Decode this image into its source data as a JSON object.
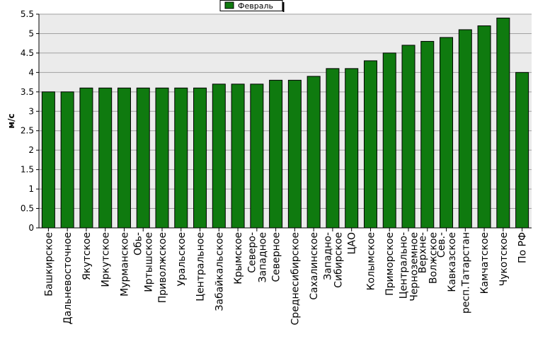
{
  "chart_data": {
    "type": "bar",
    "title": "",
    "xlabel": "",
    "ylabel": "м/с",
    "ylim": [
      0,
      5.5
    ],
    "yticks": [
      "0",
      "0.5",
      "1",
      "1.5",
      "2",
      "2.5",
      "3",
      "3.5",
      "4",
      "4.5",
      "5",
      "5.5"
    ],
    "grid": true,
    "legend_position": "top-center",
    "colors": {
      "bar": "#0f7a0f",
      "bar_edge": "#000000",
      "plot_bg": "#ebebeb",
      "grid": "#a0a0a0"
    },
    "categories": [
      "Башкирское",
      "Дальневосточное",
      "Якутское",
      "Иркутское",
      "Мурманское",
      "Обь-Иртышское",
      "Приволжское",
      "Уральское",
      "Центральное",
      "Забайкальское",
      "Крымское",
      "Северо-Западное",
      "Северное",
      "Среднесибирское",
      "Сахалинское",
      "Западно-Сибирское",
      "ЦАО",
      "Колымское",
      "Приморское",
      "Центрально-Черноземное",
      "Верхне-Волжское",
      "Сев.-Кавказское",
      "респ.Татарстан",
      "Камчатское",
      "Чукотское",
      "По РФ"
    ],
    "category_lines": [
      [
        "Башкирское"
      ],
      [
        "Дальневосточное"
      ],
      [
        "Якутское"
      ],
      [
        "Иркутское"
      ],
      [
        "Мурманское"
      ],
      [
        "Обь-",
        "Иртышское"
      ],
      [
        "Приволжское"
      ],
      [
        "Уральское"
      ],
      [
        "Центральное"
      ],
      [
        "Забайкальское"
      ],
      [
        "Крымское"
      ],
      [
        "Северо-",
        "Западное"
      ],
      [
        "Северное"
      ],
      [
        "Среднесибирское"
      ],
      [
        "Сахалинское"
      ],
      [
        "Западно-",
        "Сибирское"
      ],
      [
        "ЦАО"
      ],
      [
        "Колымское"
      ],
      [
        "Приморское"
      ],
      [
        "Центрально-",
        "Черноземное"
      ],
      [
        "Верхне-",
        "Волжское"
      ],
      [
        "Сев.-",
        "Кавказское"
      ],
      [
        "респ.Татарстан"
      ],
      [
        "Камчатское"
      ],
      [
        "Чукотское"
      ],
      [
        "По РФ"
      ]
    ],
    "series": [
      {
        "name": "Февраль",
        "values": [
          3.5,
          3.5,
          3.6,
          3.6,
          3.6,
          3.6,
          3.6,
          3.6,
          3.6,
          3.7,
          3.7,
          3.7,
          3.8,
          3.8,
          3.9,
          4.1,
          4.1,
          4.3,
          4.5,
          4.7,
          4.8,
          4.9,
          5.1,
          5.2,
          5.4,
          4.0
        ]
      }
    ]
  }
}
